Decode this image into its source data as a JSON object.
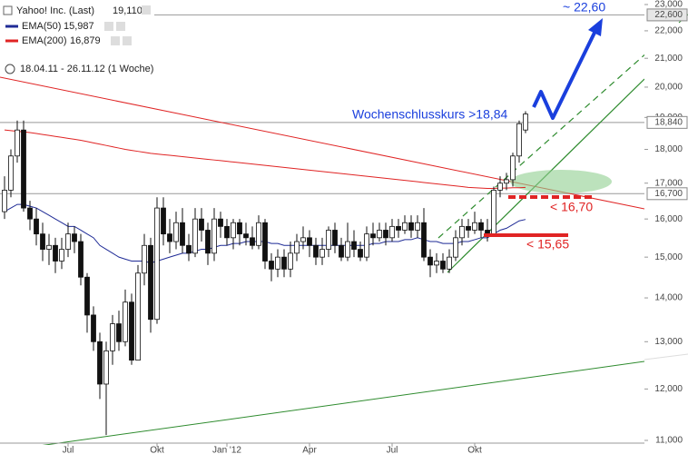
{
  "chart_data": {
    "type": "candlestick",
    "title": "Yahoo! Inc. (Last)",
    "last_label": "19,110",
    "range": "18.04.11 - 26.11.12 (1 Woche)",
    "categories": [
      null,
      null,
      null,
      null,
      null,
      null,
      null,
      null,
      null,
      null,
      "Jul",
      null,
      null,
      null,
      null,
      null,
      null,
      null,
      null,
      null,
      null,
      null,
      null,
      null,
      "Okt",
      null,
      null,
      null,
      null,
      null,
      null,
      null,
      null,
      null,
      null,
      "Jan '12",
      null,
      null,
      null,
      null,
      null,
      null,
      null,
      null,
      null,
      null,
      null,
      null,
      "Apr",
      null,
      null,
      null,
      null,
      null,
      null,
      null,
      null,
      null,
      null,
      null,
      null,
      "Jul",
      null,
      null,
      null,
      null,
      null,
      null,
      null,
      null,
      null,
      null,
      null,
      null,
      "Okt",
      null,
      null,
      null,
      null,
      null,
      null,
      null,
      null
    ],
    "open": [
      16.2,
      16.8,
      17.8,
      18.6,
      16.3,
      16.0,
      15.6,
      15.2,
      15.3,
      14.9,
      15.2,
      15.6,
      15.4,
      14.5,
      13.6,
      13.0,
      12.1,
      12.8,
      13.4,
      13.0,
      13.9,
      12.6,
      14.6,
      15.3,
      13.5,
      16.3,
      15.6,
      15.4,
      15.9,
      15.3,
      15.1,
      16.0,
      15.7,
      15.1,
      16.0,
      15.8,
      15.5,
      15.9,
      15.6,
      15.5,
      15.3,
      15.9,
      14.9,
      14.7,
      15.0,
      14.7,
      15.1,
      15.4,
      15.5,
      15.3,
      15.0,
      15.2,
      15.7,
      15.3,
      15.0,
      15.4,
      15.2,
      15.0,
      15.6,
      15.5,
      15.7,
      15.5,
      15.8,
      15.7,
      15.9,
      15.7,
      15.9,
      15.0,
      14.8,
      14.9,
      14.7,
      15.0,
      15.5,
      15.8,
      15.7,
      15.9,
      15.7,
      15.6,
      16.8,
      17.0,
      17.1,
      17.8,
      18.6
    ],
    "high": [
      17.2,
      18.0,
      18.9,
      18.9,
      16.5,
      16.3,
      15.9,
      15.6,
      15.5,
      15.5,
      15.9,
      15.8,
      15.6,
      14.6,
      13.8,
      13.2,
      13.0,
      13.6,
      13.7,
      14.2,
      14.1,
      14.8,
      15.6,
      15.5,
      16.6,
      16.6,
      16.0,
      16.2,
      16.3,
      15.6,
      16.3,
      16.3,
      15.9,
      16.3,
      16.2,
      16.0,
      16.0,
      16.0,
      15.9,
      15.8,
      16.1,
      16.0,
      15.1,
      15.2,
      15.2,
      15.4,
      15.6,
      15.8,
      15.7,
      15.5,
      15.5,
      15.8,
      15.9,
      15.5,
      15.9,
      15.7,
      15.4,
      15.8,
      15.9,
      15.9,
      15.9,
      16.0,
      16.0,
      16.1,
      16.1,
      16.1,
      16.3,
      15.2,
      15.1,
      15.1,
      15.2,
      15.7,
      16.0,
      16.0,
      16.2,
      16.0,
      16.0,
      16.9,
      17.2,
      17.3,
      17.9,
      18.9,
      19.2
    ],
    "low": [
      16.0,
      16.6,
      17.6,
      16.2,
      15.7,
      15.3,
      14.9,
      14.8,
      14.6,
      14.7,
      15.0,
      15.1,
      14.3,
      13.2,
      12.8,
      11.8,
      11.1,
      12.5,
      12.8,
      12.9,
      12.5,
      12.6,
      14.3,
      13.2,
      13.4,
      15.3,
      15.1,
      15.2,
      15.1,
      14.9,
      15.0,
      15.4,
      14.8,
      14.9,
      15.5,
      15.3,
      15.2,
      15.3,
      15.3,
      15.2,
      15.2,
      14.7,
      14.4,
      14.5,
      14.5,
      14.5,
      14.9,
      15.2,
      15.0,
      14.8,
      14.8,
      15.0,
      15.1,
      14.9,
      14.9,
      15.0,
      14.9,
      14.9,
      15.3,
      15.4,
      15.3,
      15.4,
      15.5,
      15.6,
      15.5,
      15.5,
      14.9,
      14.5,
      14.6,
      14.6,
      14.6,
      14.9,
      15.3,
      15.5,
      15.6,
      15.5,
      15.4,
      15.6,
      16.6,
      16.8,
      16.9,
      17.6,
      18.5
    ],
    "close": [
      16.8,
      17.8,
      18.6,
      16.3,
      16.0,
      15.6,
      15.2,
      15.3,
      14.9,
      15.2,
      15.6,
      15.4,
      14.5,
      13.6,
      13.0,
      12.1,
      12.8,
      13.4,
      13.0,
      13.9,
      12.6,
      14.6,
      15.3,
      13.5,
      16.3,
      15.6,
      15.4,
      15.9,
      15.3,
      15.1,
      16.0,
      15.7,
      15.1,
      16.0,
      15.8,
      15.5,
      15.9,
      15.6,
      15.5,
      15.3,
      15.9,
      14.9,
      14.7,
      15.0,
      14.7,
      15.1,
      15.4,
      15.5,
      15.3,
      15.0,
      15.2,
      15.7,
      15.3,
      15.0,
      15.4,
      15.2,
      15.0,
      15.6,
      15.5,
      15.7,
      15.5,
      15.8,
      15.7,
      15.9,
      15.7,
      15.9,
      15.0,
      14.8,
      14.9,
      14.7,
      15.0,
      15.5,
      15.8,
      15.7,
      15.9,
      15.7,
      15.6,
      16.8,
      17.0,
      17.1,
      17.8,
      18.8,
      19.11
    ],
    "series": [
      {
        "name": "EMA(50)",
        "color": "#1f2b96",
        "last_label": "15,987",
        "values": [
          16.2,
          16.3,
          16.4,
          16.4,
          16.35,
          16.3,
          16.2,
          16.1,
          16.0,
          15.9,
          15.8,
          15.8,
          15.7,
          15.6,
          15.5,
          15.3,
          15.2,
          15.1,
          15.0,
          14.95,
          14.9,
          14.9,
          14.9,
          14.85,
          14.9,
          14.95,
          15.0,
          15.05,
          15.1,
          15.1,
          15.15,
          15.2,
          15.2,
          15.25,
          15.3,
          15.3,
          15.35,
          15.35,
          15.4,
          15.4,
          15.4,
          15.4,
          15.35,
          15.35,
          15.3,
          15.3,
          15.3,
          15.3,
          15.3,
          15.3,
          15.3,
          15.3,
          15.3,
          15.3,
          15.3,
          15.3,
          15.3,
          15.3,
          15.35,
          15.35,
          15.4,
          15.4,
          15.4,
          15.45,
          15.45,
          15.5,
          15.45,
          15.4,
          15.4,
          15.35,
          15.35,
          15.35,
          15.4,
          15.4,
          15.45,
          15.5,
          15.5,
          15.6,
          15.7,
          15.75,
          15.85,
          15.95,
          15.987
        ]
      },
      {
        "name": "EMA(200)",
        "color": "#e02424",
        "last_label": "16,879",
        "values": [
          18.6,
          18.58,
          18.56,
          18.54,
          18.52,
          18.49,
          18.46,
          18.43,
          18.4,
          18.37,
          18.34,
          18.31,
          18.28,
          18.24,
          18.2,
          18.16,
          18.12,
          18.08,
          18.04,
          18.0,
          17.97,
          17.94,
          17.91,
          17.88,
          17.86,
          17.84,
          17.82,
          17.8,
          17.78,
          17.76,
          17.74,
          17.72,
          17.7,
          17.68,
          17.66,
          17.64,
          17.62,
          17.6,
          17.58,
          17.56,
          17.54,
          17.52,
          17.5,
          17.48,
          17.46,
          17.44,
          17.42,
          17.4,
          17.38,
          17.36,
          17.34,
          17.32,
          17.3,
          17.28,
          17.26,
          17.24,
          17.22,
          17.2,
          17.18,
          17.16,
          17.14,
          17.12,
          17.1,
          17.08,
          17.06,
          17.04,
          17.02,
          17.0,
          16.98,
          16.96,
          16.94,
          16.92,
          16.9,
          16.88,
          16.87,
          16.86,
          16.85,
          16.85,
          16.86,
          16.86,
          16.87,
          16.87,
          16.879
        ]
      }
    ],
    "log": true,
    "ylim": [
      11,
      23
    ],
    "yticks": [
      {
        "value": 11,
        "label": "11,000"
      },
      {
        "value": 12,
        "label": "12,000"
      },
      {
        "value": 13,
        "label": "13,000"
      },
      {
        "value": 14,
        "label": "14,000"
      },
      {
        "value": 15,
        "label": "15,000"
      },
      {
        "value": 16,
        "label": "16,000"
      },
      {
        "value": 17,
        "label": "17,000"
      },
      {
        "value": 18,
        "label": "18,000"
      },
      {
        "value": 19,
        "label": "19,000"
      },
      {
        "value": 20,
        "label": "20,000"
      },
      {
        "value": 21,
        "label": "21,000"
      },
      {
        "value": 22,
        "label": "22,000"
      },
      {
        "value": 23,
        "label": "23,000"
      }
    ],
    "levels": [
      {
        "value": 22.6,
        "label": "22,600"
      },
      {
        "value": 18.84,
        "label": "18,840"
      },
      {
        "value": 16.7,
        "label": "16,700"
      }
    ],
    "annotations": [
      "~ 22,60",
      "Wochenschlusskurs >18,84",
      "< 16,70",
      "< 15,65"
    ]
  }
}
